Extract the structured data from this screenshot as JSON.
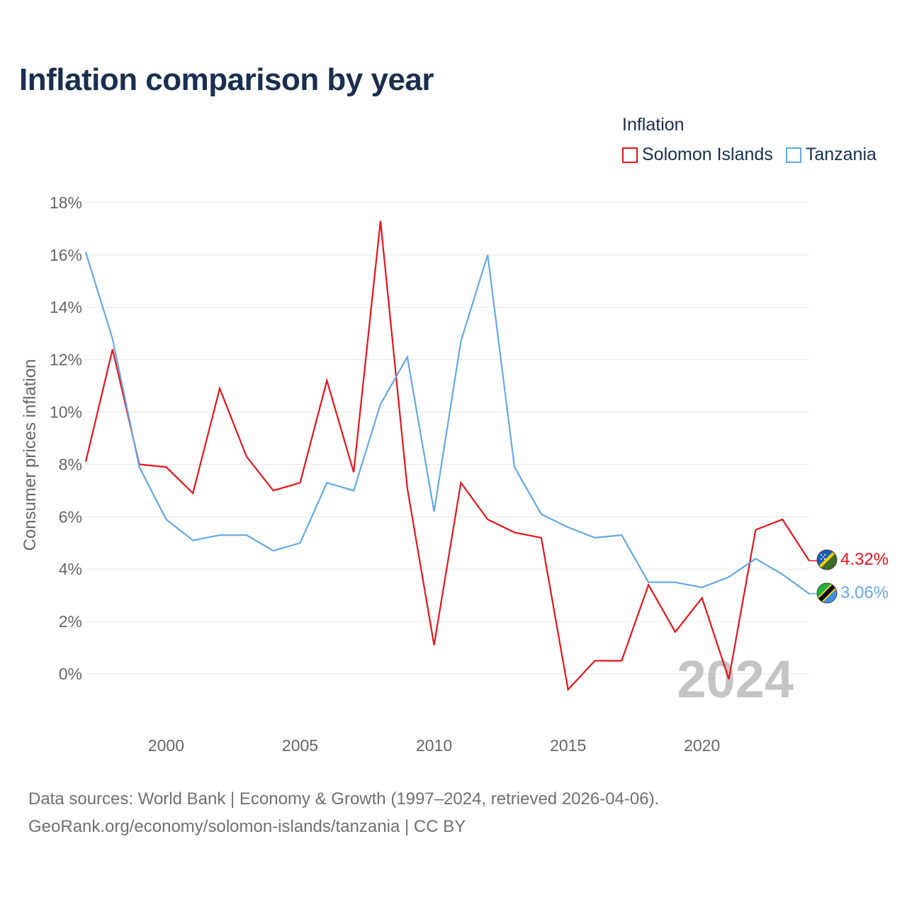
{
  "colors": {
    "title": "#1a2e4f",
    "solomon": "#e8131b",
    "tanzania": "#64a9e6",
    "axis_text": "#666666",
    "grid": "#e6e6e6",
    "watermark": "#c4c4c4",
    "source_text": "#707070"
  },
  "legend": {
    "title": "Inflation",
    "items": [
      {
        "label": "Solomon Islands",
        "icon": "solomon-islands-flag-icon"
      },
      {
        "label": "Tanzania",
        "icon": "tanzania-flag-icon"
      }
    ]
  },
  "footer": {
    "line1": "Data sources: World Bank | Economy & Growth (1997–2024, retrieved 2026-04-06).",
    "line2": "GeoRank.org/economy/solomon-islands/tanzania | CC BY"
  },
  "chart_data": {
    "type": "line",
    "title": "Inflation comparison by year",
    "xlabel": "",
    "ylabel": "Consumer prices inflation",
    "watermark": "2024",
    "xlim": [
      1997,
      2024
    ],
    "ylim": [
      -2,
      18
    ],
    "x_ticks": [
      2000,
      2005,
      2010,
      2015,
      2020
    ],
    "x_tick_labels": [
      "2000",
      "2005",
      "2010",
      "2015",
      "2020"
    ],
    "y_ticks": [
      0,
      2,
      4,
      6,
      8,
      10,
      12,
      14,
      16,
      18
    ],
    "y_tick_labels": [
      "0%",
      "2%",
      "4%",
      "6%",
      "8%",
      "10%",
      "12%",
      "14%",
      "16%",
      "18%"
    ],
    "grid": true,
    "legend_position": "top-right",
    "x": [
      1997,
      1998,
      1999,
      2000,
      2001,
      2002,
      2003,
      2004,
      2005,
      2006,
      2007,
      2008,
      2009,
      2010,
      2011,
      2012,
      2013,
      2014,
      2015,
      2016,
      2017,
      2018,
      2019,
      2020,
      2021,
      2022,
      2023,
      2024
    ],
    "series": [
      {
        "name": "Solomon Islands",
        "color": "#e8131b",
        "end_label": "4.32%",
        "values": [
          8.1,
          12.4,
          8.0,
          7.9,
          6.9,
          10.9,
          8.3,
          7.0,
          7.3,
          11.2,
          7.7,
          17.3,
          7.1,
          1.1,
          7.3,
          5.9,
          5.4,
          5.2,
          -0.6,
          0.5,
          0.5,
          3.4,
          1.6,
          2.9,
          -0.2,
          5.5,
          5.9,
          4.32
        ]
      },
      {
        "name": "Tanzania",
        "color": "#64a9e6",
        "end_label": "3.06%",
        "values": [
          16.1,
          12.8,
          7.9,
          5.9,
          5.1,
          5.3,
          5.3,
          4.7,
          5.0,
          7.3,
          7.0,
          10.3,
          12.1,
          6.2,
          12.7,
          16.0,
          7.9,
          6.1,
          5.6,
          5.2,
          5.3,
          3.5,
          3.5,
          3.3,
          3.7,
          4.4,
          3.8,
          3.06
        ]
      }
    ]
  }
}
